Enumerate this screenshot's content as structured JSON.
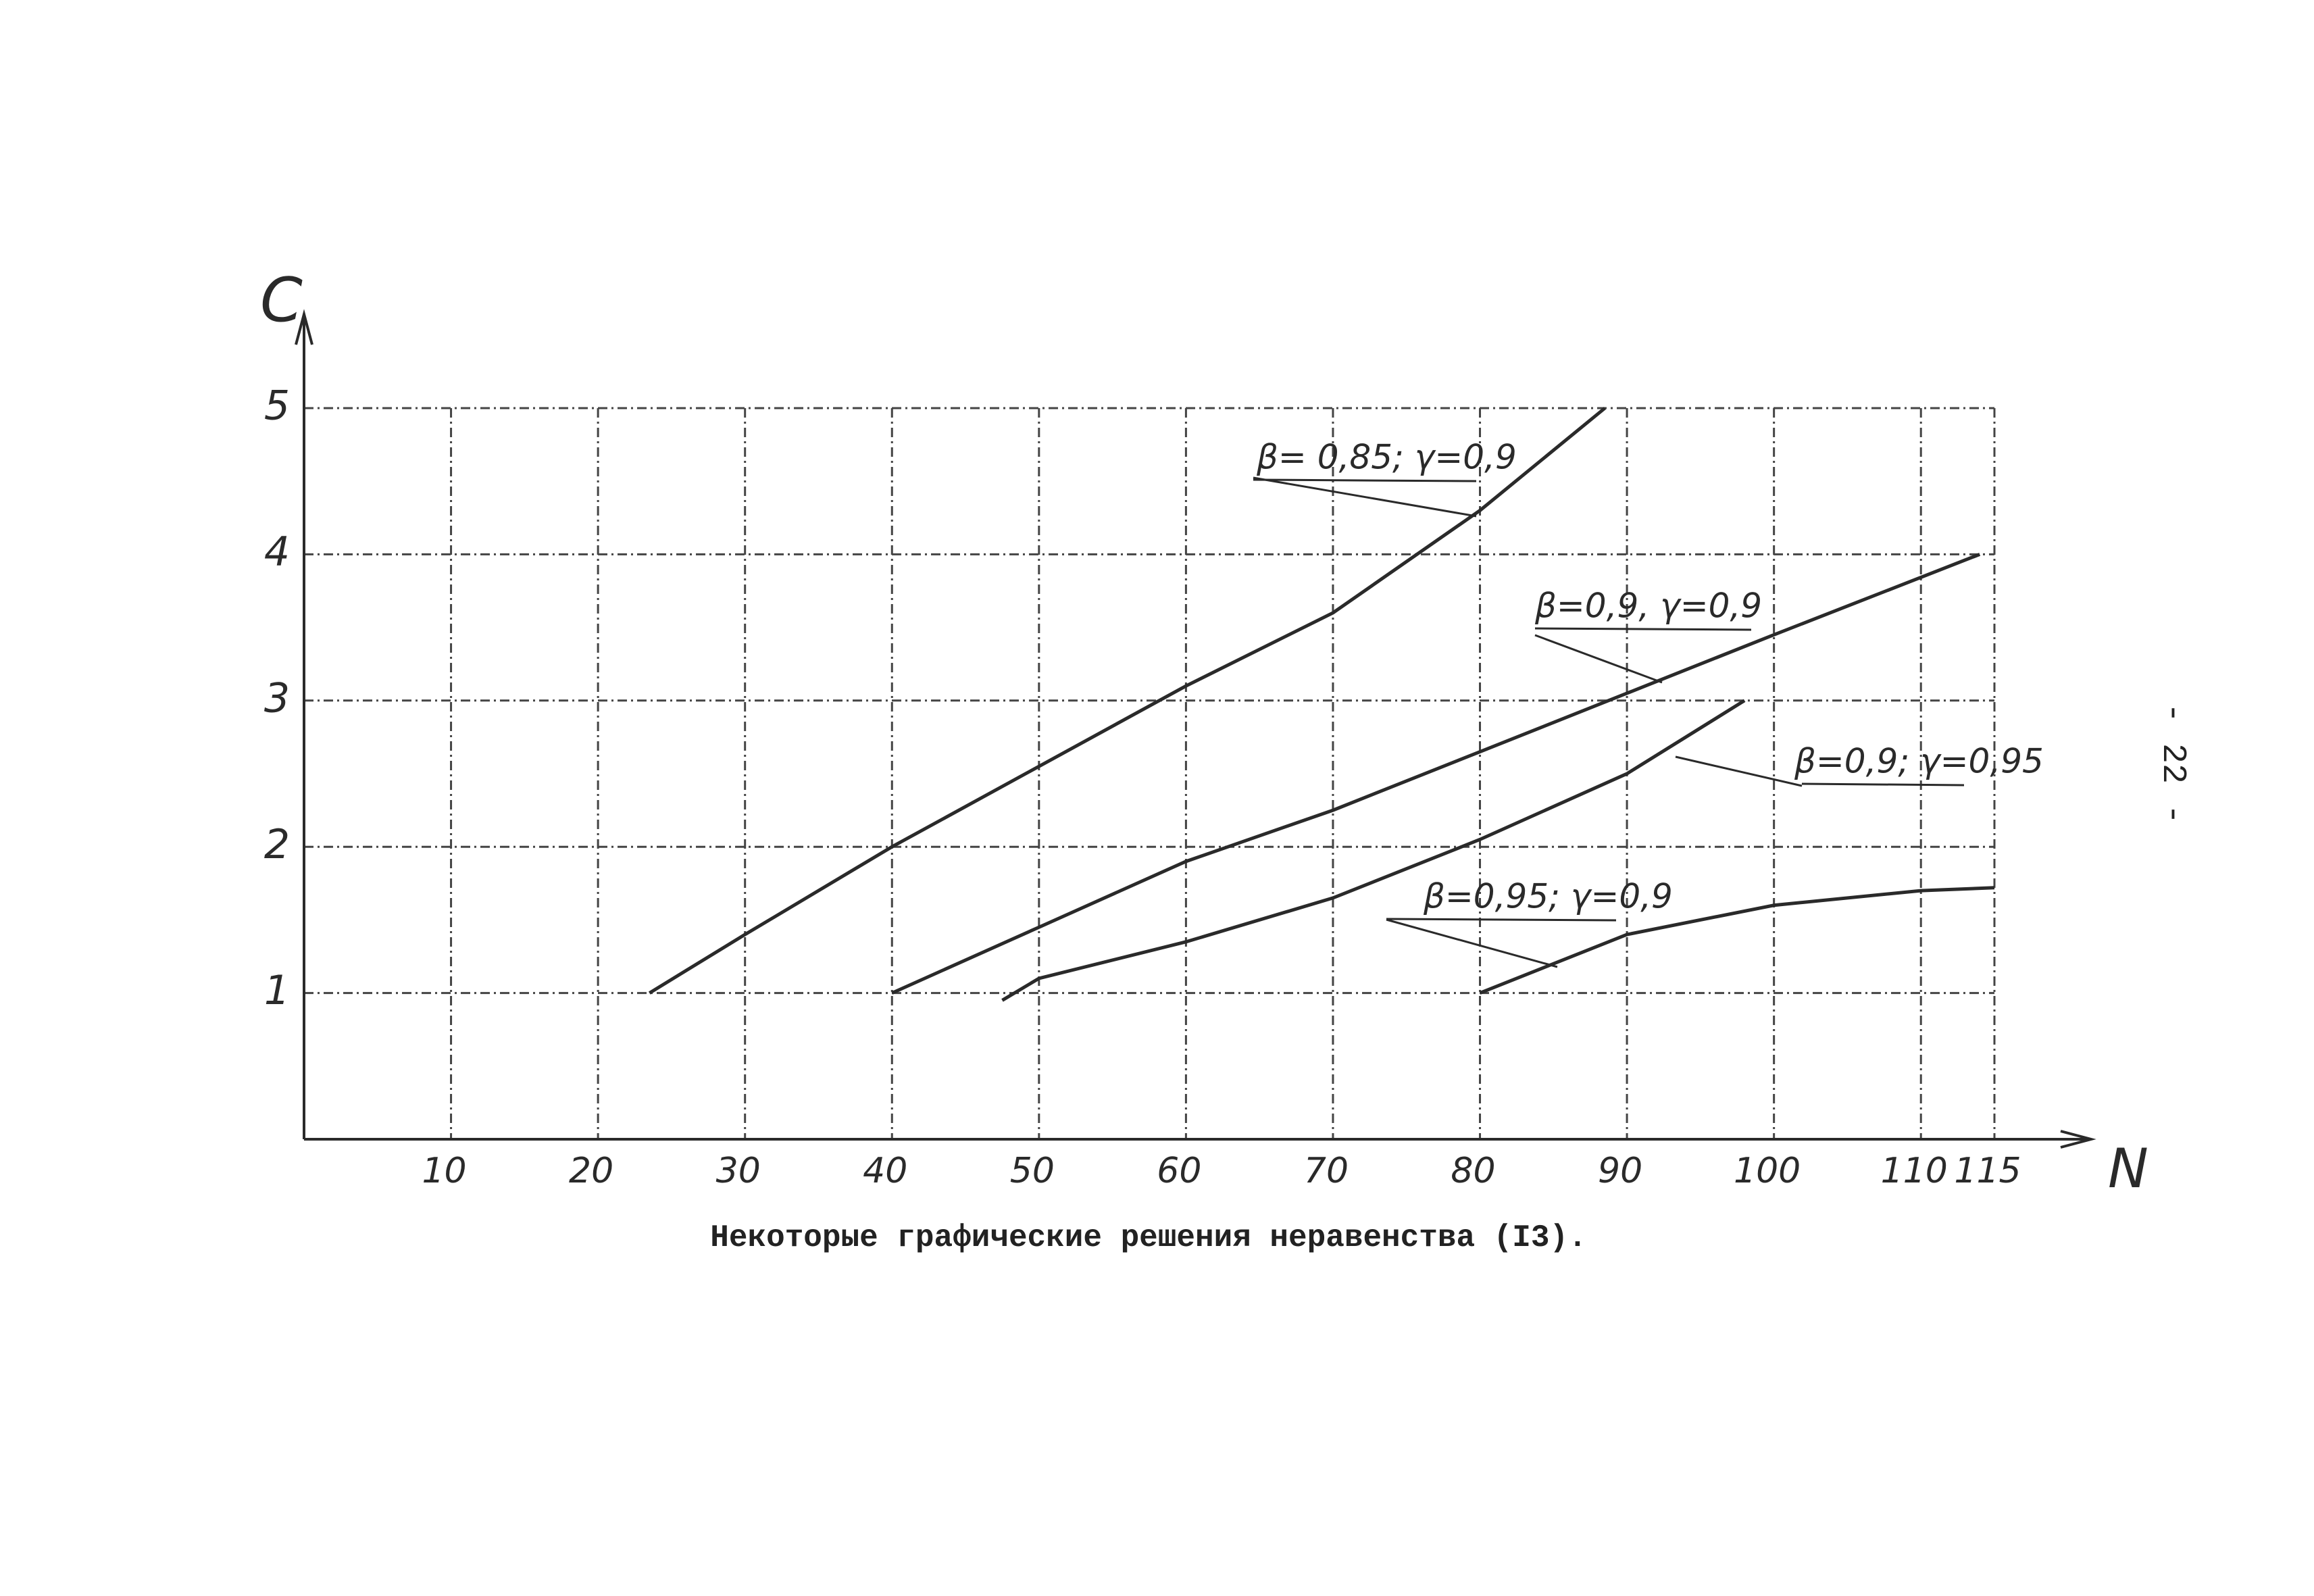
{
  "chart_data": {
    "type": "line",
    "x_label": "N",
    "y_label": "C",
    "xlim": [
      0,
      115
    ],
    "ylim": [
      0,
      5
    ],
    "xticks": [
      10,
      20,
      30,
      40,
      50,
      60,
      70,
      80,
      90,
      100,
      110,
      115
    ],
    "yticks": [
      1,
      2,
      3,
      4,
      5
    ],
    "grid": true,
    "series": [
      {
        "name": "β= 0,85; γ=0,9",
        "color": "#2a2a2a",
        "x": [
          23.5,
          30,
          40,
          50,
          60,
          70,
          80,
          88.5
        ],
        "values": [
          1.0,
          1.4,
          2.0,
          2.55,
          3.1,
          3.6,
          4.3,
          5.0
        ]
      },
      {
        "name": "β=0,9, γ=0,9",
        "color": "#2a2a2a",
        "x": [
          40,
          50,
          60,
          70,
          80,
          90,
          100,
          114
        ],
        "values": [
          1.0,
          1.45,
          1.9,
          2.25,
          2.65,
          3.05,
          3.45,
          4.0
        ]
      },
      {
        "name": "β=0,9; γ=0,95",
        "color": "#2a2a2a",
        "x": [
          47.5,
          50,
          60,
          70,
          80,
          90,
          98
        ],
        "values": [
          0.95,
          1.1,
          1.35,
          1.65,
          2.05,
          2.5,
          3.0
        ]
      },
      {
        "name": "β=0,95; γ=0,9",
        "color": "#2a2a2a",
        "x": [
          80,
          90,
          100,
          110,
          115
        ],
        "values": [
          1.0,
          1.4,
          1.6,
          1.7,
          1.72
        ]
      }
    ]
  },
  "caption": "Некоторые графические решения неравенства (I3).",
  "page_number": "- 22 -"
}
